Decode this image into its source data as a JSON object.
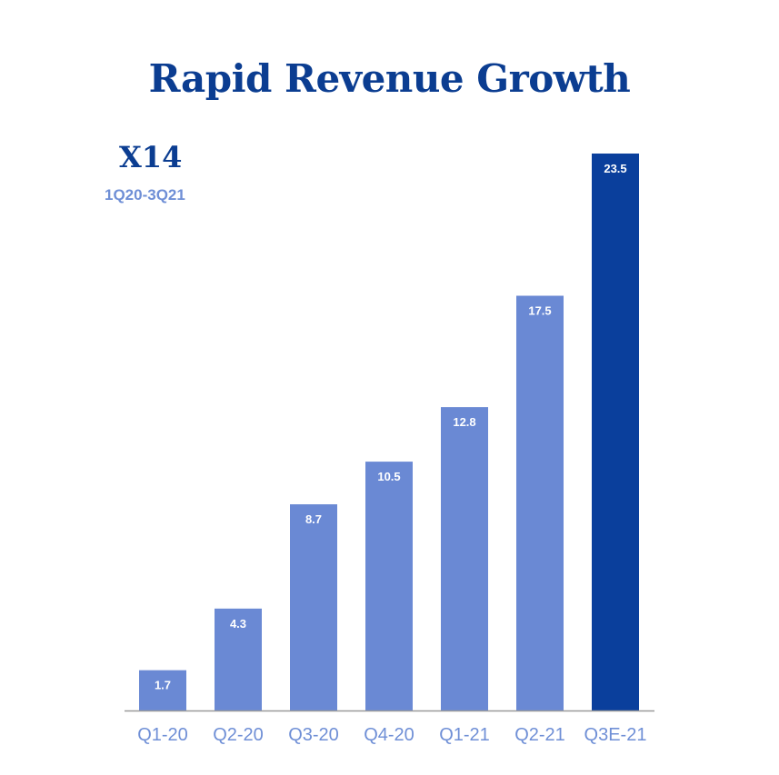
{
  "chart_data": {
    "type": "bar",
    "title": "Rapid Revenue Growth",
    "annotation": {
      "multiplier": "X14",
      "period": "1Q20-3Q21"
    },
    "categories": [
      "Q1-20",
      "Q2-20",
      "Q3-20",
      "Q4-20",
      "Q1-21",
      "Q2-21",
      "Q3E-21"
    ],
    "values": [
      1.7,
      4.3,
      8.7,
      10.5,
      12.8,
      17.5,
      23.5
    ],
    "data_labels": [
      "1.7",
      "4.3",
      "8.7",
      "10.5",
      "12.8",
      "17.5",
      "23.5"
    ],
    "xlabel": "",
    "ylabel": "",
    "ylim": [
      0,
      23.5
    ],
    "grid": false,
    "colors": {
      "actual": "#6a89d4",
      "estimate": "#0a3f9c",
      "title": "#0b3d91",
      "axis": "#9a9a9a",
      "tick_label": "#6f8fd6"
    },
    "highlight_index": 6
  }
}
